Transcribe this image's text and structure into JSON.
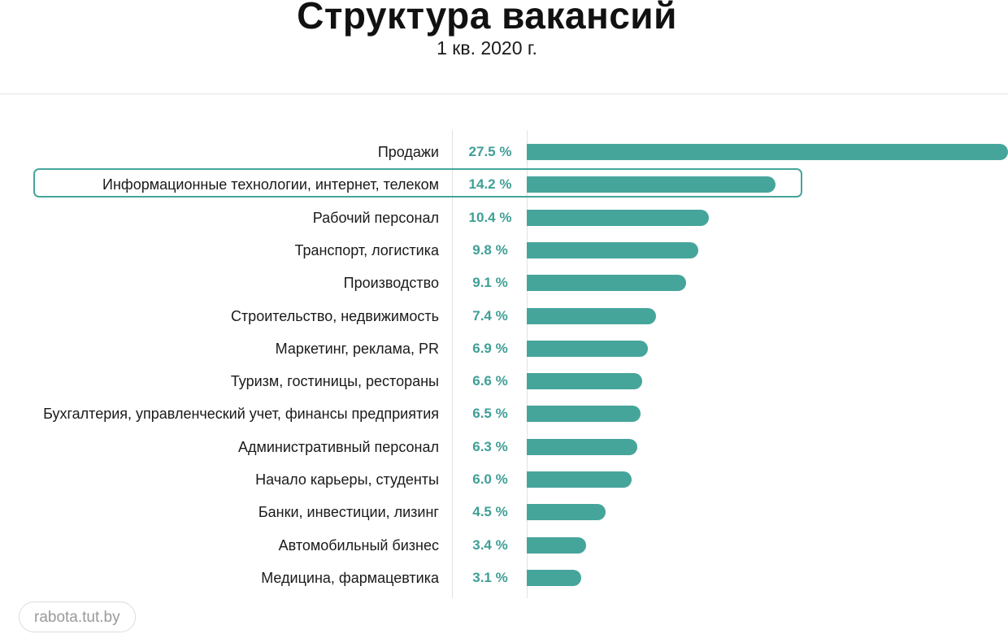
{
  "chart_data": {
    "type": "bar",
    "orientation": "horizontal",
    "title": "Структура вакансий",
    "subtitle": "1 кв. 2020 г.",
    "categories": [
      "Продажи",
      "Информационные технологии, интернет, телеком",
      "Рабочий персонал",
      "Транспорт, логистика",
      "Производство",
      "Строительство, недвижимость",
      "Маркетинг, реклама, PR",
      "Туризм, гостиницы, рестораны",
      "Бухгалтерия, управленческий учет, финансы предприятия",
      "Административный персонал",
      "Начало карьеры, студенты",
      "Банки, инвестиции, лизинг",
      "Автомобильный бизнес",
      "Медицина, фармацевтика"
    ],
    "values": [
      27.5,
      14.2,
      10.4,
      9.8,
      9.1,
      7.4,
      6.9,
      6.6,
      6.5,
      6.3,
      6.0,
      4.5,
      3.4,
      3.1
    ],
    "value_labels": [
      "27.5 %",
      "14.2 %",
      "10.4 %",
      "9.8 %",
      "9.1 %",
      "7.4 %",
      "6.9 %",
      "6.6 %",
      "6.5 %",
      "6.3 %",
      "6.0 %",
      "4.5 %",
      "3.4 %",
      "3.1 %"
    ],
    "unit": "%",
    "highlighted_category": "Информационные технологии, интернет, телеком",
    "xlim": [
      0,
      27.5
    ],
    "grid": false,
    "legend": "none",
    "colors": {
      "bar": "#46a59b",
      "value_text": "#3f9f95",
      "highlight_border": "#46a59b"
    }
  },
  "source": {
    "label": "rabota.tut.by"
  }
}
